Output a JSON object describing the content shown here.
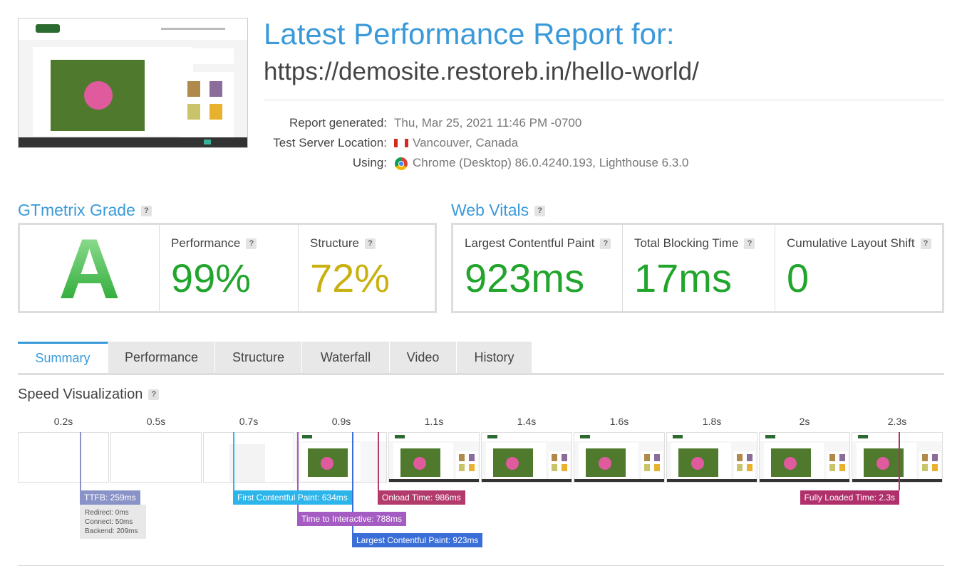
{
  "help_icon": "?",
  "header": {
    "title": "Latest Performance Report for:",
    "url": "https://demosite.restoreb.in/hello-world/"
  },
  "meta": [
    {
      "label": "Report generated:",
      "value": "Thu, Mar 25, 2021 11:46 PM -0700"
    },
    {
      "label": "Test Server Location:",
      "value": "Vancouver, Canada"
    },
    {
      "label": "Using:",
      "value": "Chrome (Desktop) 86.0.4240.193, Lighthouse 6.3.0"
    }
  ],
  "grade": {
    "title": "GTmetrix Grade",
    "letter": "A",
    "metrics": [
      {
        "label": "Performance",
        "value": "99%"
      },
      {
        "label": "Structure",
        "value": "72%"
      }
    ]
  },
  "vitals": {
    "title": "Web Vitals",
    "metrics": [
      {
        "label": "Largest Contentful Paint",
        "value": "923ms"
      },
      {
        "label": "Total Blocking Time",
        "value": "17ms"
      },
      {
        "label": "Cumulative Layout Shift",
        "value": "0"
      }
    ]
  },
  "tabs": [
    "Summary",
    "Performance",
    "Structure",
    "Waterfall",
    "Video",
    "History"
  ],
  "speed": {
    "title": "Speed Visualization",
    "frames": [
      "0.2s",
      "0.5s",
      "0.7s",
      "0.9s",
      "1.1s",
      "1.4s",
      "1.6s",
      "1.8s",
      "2s",
      "2.3s"
    ],
    "markers": [
      "TTFB: 259ms",
      "First Contentful Paint: 634ms",
      "Onload Time: 986ms",
      "Time to Interactive: 788ms",
      "Largest Contentful Paint: 923ms",
      "Fully Loaded Time: 2.3s"
    ],
    "ttfb_details": [
      "Redirect: 0ms",
      "Connect: 50ms",
      "Backend: 209ms"
    ]
  }
}
